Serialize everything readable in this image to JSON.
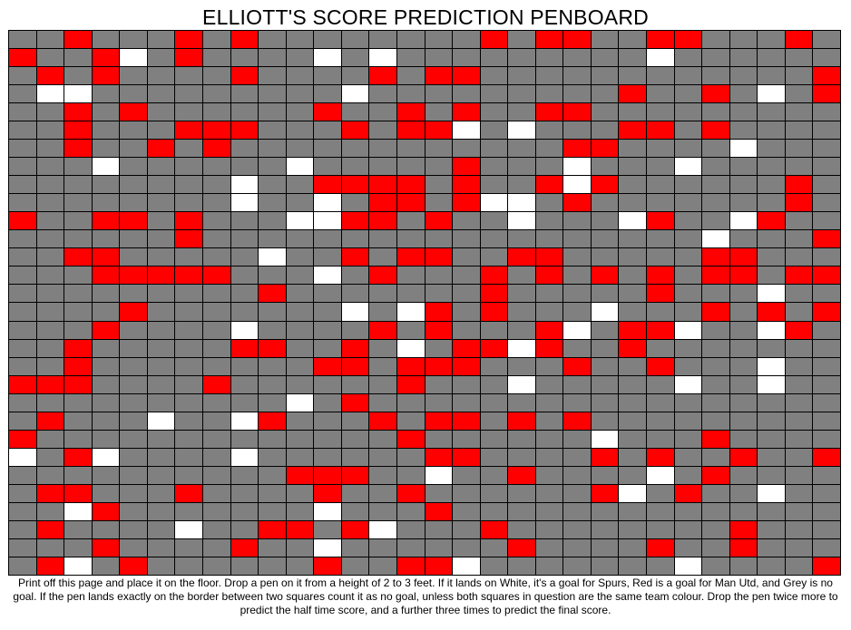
{
  "title": "ELLIOTT'S SCORE PREDICTION PENBOARD",
  "colors": {
    "grey": "#808080",
    "red": "#ff0000",
    "white": "#ffffff",
    "grid_line": "#000000"
  },
  "legend": {
    "W": "white",
    "R": "red",
    "G": "grey"
  },
  "board": {
    "rows": [
      "GGRGGGRGRGGGGGGGGRGRRGGRRGGGRG",
      "RGGRWGRGGGGWGWGGGGGGGGGWGGGGGG",
      "GRGRGGGGRGGGGRGRRGGGGGGGGGGGGR",
      "GWWGGGGGGGGGWGGGGGGGGGRGGRGWGR",
      "GGRGRGGGGGGRGGRGRGGRRGGGGGGGGG",
      "GGRGGGRRRGGGRGRRWGWGGGRRGRGGGG",
      "GGRGGRGRGGGGGGGGGGGGRRGGGGWGGG",
      "GGGWGGGGGGWGGGGGRGGGWGGGWGGGGG",
      "GGGGGGGGWGGRRRRGRGGRWRGGGGGGRG",
      "GGGGGGGGWGGWGRRGRWWGRGGGGGGGRG",
      "RGGRRGRGGGWWRRGRGGWGGGWRGGWRGG",
      "GGGGGGRGGGGGGGGGGGGGGGGGGWGGGR",
      "GGRRGGGGGWGGRGRRGGRRGGGGGRRGGG",
      "GGGRRRRRGGGWGRGGGRGRGRGRGRRGRR",
      "GGGGGGGGGRGGGGGGGRGGGGGRGGGWGG",
      "GGGGRGGGGGGGWGWRGRGGGWGGGRGRGR",
      "GGGRGGGGWGGGGRGRGGGRWGRRWGGWRG",
      "GGRGGGGGRRGGRGWGRRWRGGRGGGGGGG",
      "GGRGGGGGGGGRRGRRRGGGRGGRGGGWGG",
      "RRRGGGGRGGGGGGRGGGWGGGGGWGGWGG",
      "GGGGGGGGGGWGRGGGGGGGGGGGGGGGGG",
      "GRGGGWGGWRGGGRGRRGRGRGGGGGGGGG",
      "RGGGGGGGGGGGGGRGGGGGGWGGGRGGGG",
      "WGRWGGGGWGGGGGGRRGGGGRGRGGRGGR",
      "GGGGGGGGGGRRRGGWGGRGGGGWGRGGGG",
      "GRRGGGRGGGGRGGRGGGGGGRWGRGGWGG",
      "GGWRGGGGGGGWGGGRGGGGGGGGGGGGGG",
      "GRGGGGWGGRRGRWGGGRGGGGGGGGRGGG",
      "GGGRGGGGRGGWGGGGGGRGGGGRGGRGGG",
      "GRWGRGGGGGGRGGRRWGGGGGGGWGGGGR"
    ]
  },
  "instructions": "Print off this page and place it on the floor. Drop a pen on it from a height of 2 to 3 feet. If it lands on White, it's a goal for Spurs, Red is a goal for Man Utd, and Grey is no goal. If the pen lands exactly on the border between two squares count it as no goal, unless both squares in question are the same team colour. Drop the pen twice more to predict the half time score, and a further three times to predict the final score."
}
